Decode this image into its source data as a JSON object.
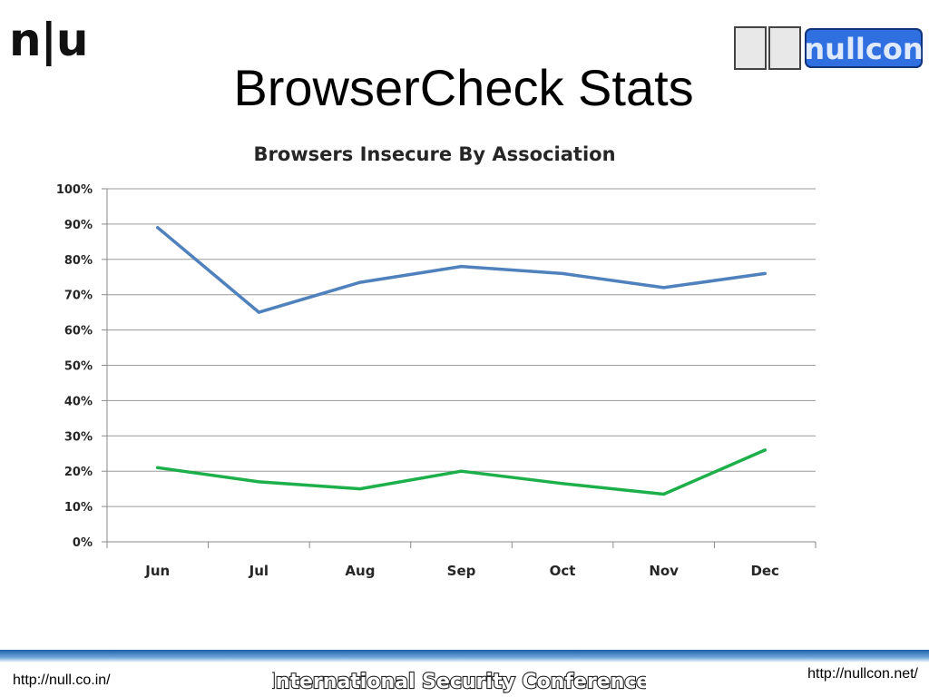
{
  "slide": {
    "title": "BrowserCheck Stats",
    "logo_left": "n|u",
    "logo_right": "nullcon",
    "footer_left": "http://null.co.in/",
    "footer_center": "International Security Conference",
    "footer_right": "http://nullcon.net/"
  },
  "colors": {
    "series_blue": "#4f81bd",
    "series_green": "#1db04a",
    "grid": "#9a9a9a"
  },
  "chart_data": {
    "type": "line",
    "title": "Browsers Insecure By Association",
    "categories": [
      "Jun",
      "Jul",
      "Aug",
      "Sep",
      "Oct",
      "Nov",
      "Dec"
    ],
    "y_ticks": [
      "0%",
      "10%",
      "20%",
      "30%",
      "40%",
      "50%",
      "60%",
      "70%",
      "80%",
      "90%",
      "100%"
    ],
    "ylim": [
      0,
      100
    ],
    "grid": true,
    "legend": "none",
    "series": [
      {
        "values": [
          89,
          65,
          73.5,
          78,
          76,
          72,
          76
        ]
      },
      {
        "values": [
          21,
          17,
          15,
          20,
          16.5,
          13.5,
          26
        ]
      }
    ]
  }
}
